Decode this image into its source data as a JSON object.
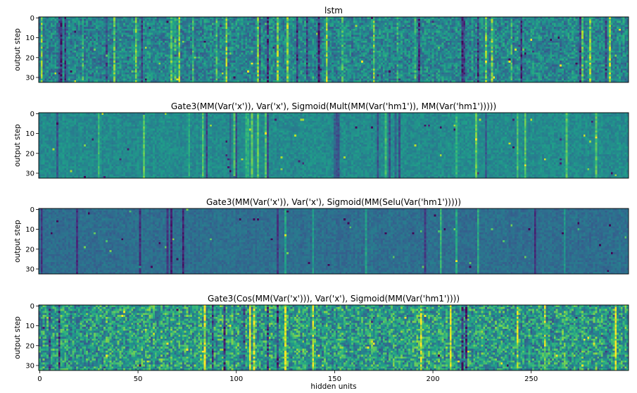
{
  "chart_data": [
    {
      "type": "heatmap",
      "title": "lstm",
      "ylabel": "output step",
      "xlabel": "",
      "xlim": [
        0,
        299
      ],
      "ylim": [
        32,
        0
      ],
      "xticks": [],
      "yticks": [
        0,
        10,
        20,
        30
      ],
      "colormap": "viridis",
      "style": {
        "mean": 0.45,
        "noise": 0.16,
        "stripe_prob": 0.12,
        "stripe_amp": 0.35,
        "seed": 11
      }
    },
    {
      "type": "heatmap",
      "title": "Gate3(MM(Var('x')), Var('x'), Sigmoid(Mult(MM(Var('hm1')), MM(Var('hm1')))))",
      "ylabel": "output step",
      "xlabel": "",
      "xlim": [
        0,
        299
      ],
      "ylim": [
        32,
        0
      ],
      "xticks": [],
      "yticks": [
        0,
        10,
        20,
        30
      ],
      "colormap": "viridis",
      "style": {
        "mean": 0.48,
        "noise": 0.07,
        "stripe_prob": 0.07,
        "stripe_amp": 0.28,
        "seed": 23
      }
    },
    {
      "type": "heatmap",
      "title": "Gate3(MM(Var('x')), Var('x'), Sigmoid(MM(Selu(Var('hm1')))))",
      "ylabel": "output step",
      "xlabel": "",
      "xlim": [
        0,
        299
      ],
      "ylim": [
        32,
        0
      ],
      "xticks": [],
      "yticks": [
        0,
        10,
        20,
        30
      ],
      "colormap": "viridis",
      "style": {
        "mean": 0.36,
        "noise": 0.06,
        "stripe_prob": 0.05,
        "stripe_amp": 0.3,
        "seed": 37
      }
    },
    {
      "type": "heatmap",
      "title": "Gate3(Cos(MM(Var('x'))), Var('x'), Sigmoid(MM(Var('hm1'))))",
      "ylabel": "output step",
      "xlabel": "hidden units",
      "xlim": [
        0,
        299
      ],
      "ylim": [
        32,
        0
      ],
      "xticks": [
        0,
        50,
        100,
        150,
        200,
        250
      ],
      "yticks": [
        0,
        10,
        20,
        30
      ],
      "colormap": "viridis",
      "style": {
        "mean": 0.55,
        "noise": 0.24,
        "stripe_prob": 0.08,
        "stripe_amp": 0.45,
        "seed": 53
      }
    }
  ]
}
